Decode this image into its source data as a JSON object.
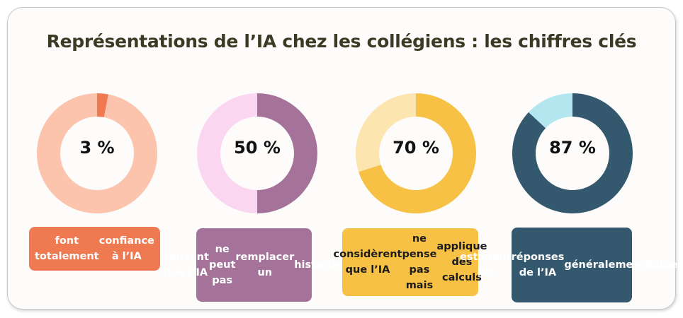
{
  "title": "Représentations de l’IA chez les collégiens : les chiffres clés",
  "chart_data": [
    {
      "type": "pie",
      "variant": "donut",
      "value_label": "3 %",
      "percent": 3,
      "caption_lines": [
        "font totalement",
        "confiance à l’IA"
      ],
      "colors": {
        "main": "#ef7a52",
        "rest": "#fcc3ad",
        "label_bg": "#ef7a52",
        "label_text": "#ffffff"
      }
    },
    {
      "type": "pie",
      "variant": "donut",
      "value_label": "50 %",
      "percent": 50,
      "caption_lines": [
        "pensent que l’IA",
        "ne peut pas",
        "remplacer un",
        "historien"
      ],
      "colors": {
        "main": "#a57399",
        "rest": "#fbd6f0",
        "label_bg": "#a57399",
        "label_text": "#ffffff"
      }
    },
    {
      "type": "pie",
      "variant": "donut",
      "value_label": "70 %",
      "percent": 70,
      "caption_lines": [
        "considèrent que l’IA",
        "ne pense pas mais",
        "applique des calculs"
      ],
      "colors": {
        "main": "#f6c144",
        "rest": "#fde5b0",
        "label_bg": "#f6c144",
        "label_text": "#1c1c1c"
      }
    },
    {
      "type": "pie",
      "variant": "donut",
      "value_label": "87 %",
      "percent": 87,
      "caption_lines": [
        "estiment les",
        "réponses de l’IA",
        "généralement",
        "fiables"
      ],
      "colors": {
        "main": "#34586e",
        "rest": "#b3e6ef",
        "label_bg": "#34586e",
        "label_text": "#ffffff"
      }
    }
  ]
}
